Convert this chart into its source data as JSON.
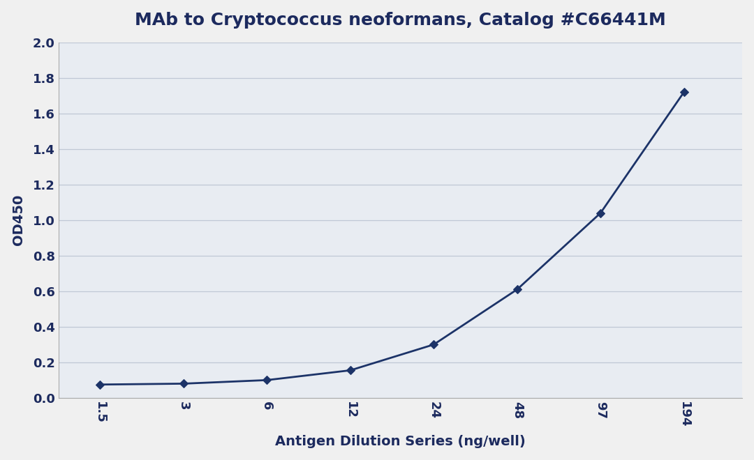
{
  "title": "MAb to Cryptococcus neoformans, Catalog #C66441M",
  "xlabel": "Antigen Dilution Series (ng/well)",
  "ylabel": "OD450",
  "x_labels": [
    "1.5",
    "3",
    "6",
    "12",
    "24",
    "48",
    "97",
    "194"
  ],
  "x_values": [
    1,
    2,
    3,
    4,
    5,
    6,
    7,
    8
  ],
  "y_values": [
    0.075,
    0.08,
    0.1,
    0.155,
    0.3,
    0.61,
    1.04,
    1.72
  ],
  "ylim": [
    0.0,
    2.0
  ],
  "yticks": [
    0.0,
    0.2,
    0.4,
    0.6,
    0.8,
    1.0,
    1.2,
    1.4,
    1.6,
    1.8,
    2.0
  ],
  "line_color": "#1c3368",
  "marker": "D",
  "marker_size": 6,
  "line_width": 2.0,
  "title_fontsize": 18,
  "label_fontsize": 14,
  "tick_fontsize": 13,
  "grid_color": "#c0c8d5",
  "plot_bg_color": "#e8ecf2",
  "figure_bg_color": "#f0f0f0",
  "text_color": "#1c2a5e"
}
